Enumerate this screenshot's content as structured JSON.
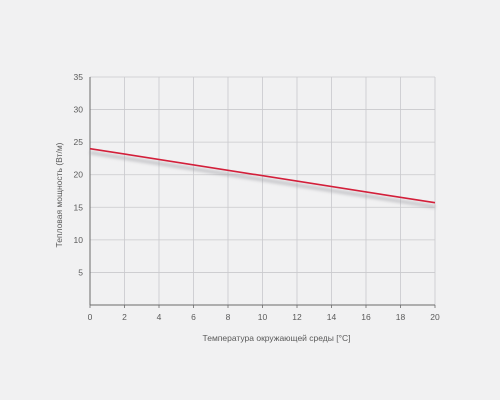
{
  "chart_data": {
    "type": "line",
    "title": "",
    "xlabel": "Температура окружающей среды  [°C]",
    "ylabel": "Тепловая мощность (Вт/м)",
    "xlim": [
      0,
      20
    ],
    "ylim": [
      0,
      35
    ],
    "x_ticks": [
      0,
      2,
      4,
      6,
      8,
      10,
      12,
      14,
      16,
      18,
      20
    ],
    "y_ticks": [
      5,
      10,
      15,
      20,
      25,
      30,
      35
    ],
    "grid": true,
    "legend": "none",
    "series": [
      {
        "color": "#d31f3a",
        "x": [
          0,
          20
        ],
        "y": [
          24,
          15.7
        ]
      }
    ]
  }
}
